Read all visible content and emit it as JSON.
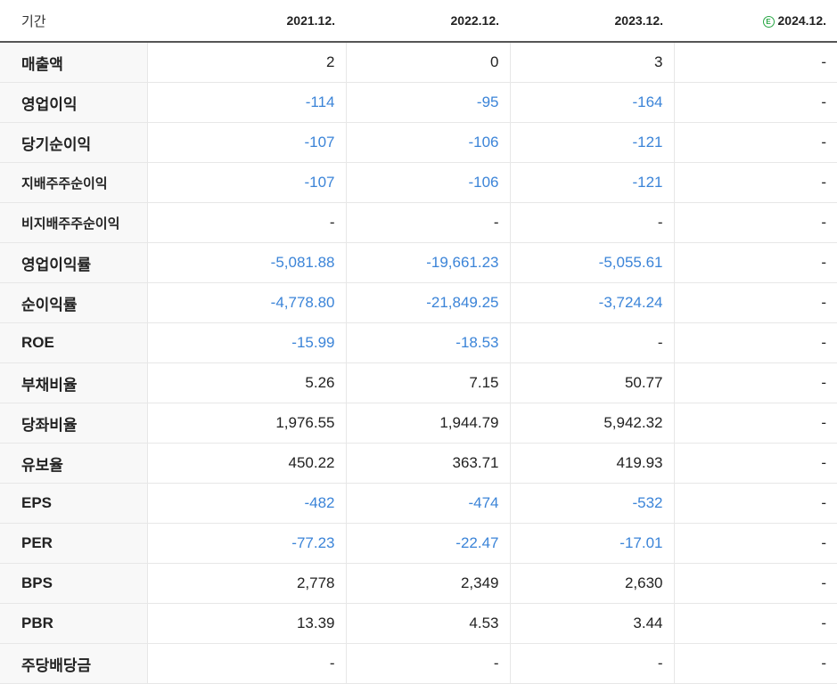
{
  "header": {
    "period_label": "기간",
    "years": [
      "2021.12.",
      "2022.12.",
      "2023.12."
    ],
    "estimate_badge": "E",
    "estimate_year": "2024.12."
  },
  "rows": [
    {
      "label": "매출액",
      "values": [
        "2",
        "0",
        "3",
        "-"
      ]
    },
    {
      "label": "영업이익",
      "values": [
        "-114",
        "-95",
        "-164",
        "-"
      ]
    },
    {
      "label": "당기순이익",
      "values": [
        "-107",
        "-106",
        "-121",
        "-"
      ]
    },
    {
      "label": "지배주주순이익",
      "values": [
        "-107",
        "-106",
        "-121",
        "-"
      ]
    },
    {
      "label": "비지배주주순이익",
      "values": [
        "-",
        "-",
        "-",
        "-"
      ]
    },
    {
      "label": "영업이익률",
      "values": [
        "-5,081.88",
        "-19,661.23",
        "-5,055.61",
        "-"
      ]
    },
    {
      "label": "순이익률",
      "values": [
        "-4,778.80",
        "-21,849.25",
        "-3,724.24",
        "-"
      ]
    },
    {
      "label": "ROE",
      "values": [
        "-15.99",
        "-18.53",
        "-",
        "-"
      ]
    },
    {
      "label": "부채비율",
      "values": [
        "5.26",
        "7.15",
        "50.77",
        "-"
      ]
    },
    {
      "label": "당좌비율",
      "values": [
        "1,976.55",
        "1,944.79",
        "5,942.32",
        "-"
      ]
    },
    {
      "label": "유보율",
      "values": [
        "450.22",
        "363.71",
        "419.93",
        "-"
      ]
    },
    {
      "label": "EPS",
      "values": [
        "-482",
        "-474",
        "-532",
        "-"
      ]
    },
    {
      "label": "PER",
      "values": [
        "-77.23",
        "-22.47",
        "-17.01",
        "-"
      ]
    },
    {
      "label": "BPS",
      "values": [
        "2,778",
        "2,349",
        "2,630",
        "-"
      ]
    },
    {
      "label": "PBR",
      "values": [
        "13.39",
        "4.53",
        "3.44",
        "-"
      ]
    },
    {
      "label": "주당배당금",
      "values": [
        "-",
        "-",
        "-",
        "-"
      ]
    }
  ],
  "colors": {
    "negative": "#3b84d8",
    "estimate_badge": "#29a745"
  }
}
